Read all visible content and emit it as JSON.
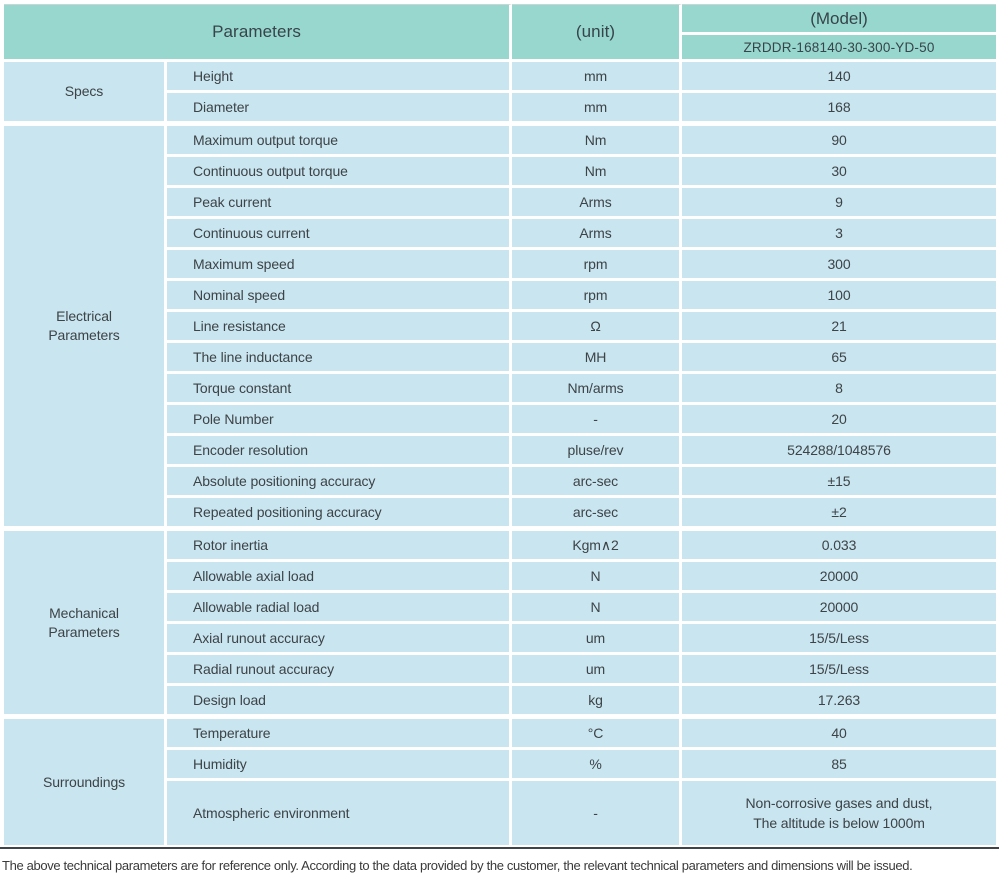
{
  "header": {
    "parameters_label": "Parameters",
    "unit_label": "(unit)",
    "model_label": "(Model)",
    "model_number": "ZRDDR-168140-30-300-YD-50"
  },
  "colors": {
    "header_bg": "#98d7ce",
    "row_bg": "#c9e5ef",
    "grid": "#ffffff",
    "text": "#3d4347",
    "bottom_rule": "#3f4448"
  },
  "groups": [
    {
      "label": "Specs",
      "rows": [
        {
          "param": "Height",
          "unit": "mm",
          "value": "140"
        },
        {
          "param": "Diameter",
          "unit": "mm",
          "value": "168"
        }
      ]
    },
    {
      "label": "Electrical Parameters",
      "rows": [
        {
          "param": "Maximum output torque",
          "unit": "Nm",
          "value": "90"
        },
        {
          "param": "Continuous output torque",
          "unit": "Nm",
          "value": "30"
        },
        {
          "param": "Peak current",
          "unit": "Arms",
          "value": "9"
        },
        {
          "param": "Continuous current",
          "unit": "Arms",
          "value": "3"
        },
        {
          "param": "Maximum speed",
          "unit": "rpm",
          "value": "300"
        },
        {
          "param": "Nominal speed",
          "unit": "rpm",
          "value": "100"
        },
        {
          "param": "Line resistance",
          "unit": "Ω",
          "value": "21"
        },
        {
          "param": "The line inductance",
          "unit": "MH",
          "value": "65"
        },
        {
          "param": "Torque constant",
          "unit": "Nm/arms",
          "value": "8"
        },
        {
          "param": "Pole Number",
          "unit": "-",
          "value": "20"
        },
        {
          "param": "Encoder resolution",
          "unit": "pluse/rev",
          "value": "524288/1048576"
        },
        {
          "param": "Absolute positioning accuracy",
          "unit": "arc-sec",
          "value": "±15"
        },
        {
          "param": "Repeated positioning accuracy",
          "unit": "arc-sec",
          "value": "±2"
        }
      ]
    },
    {
      "label": "Mechanical Parameters",
      "rows": [
        {
          "param": "Rotor inertia",
          "unit": "Kgm∧2",
          "value": "0.033"
        },
        {
          "param": "Allowable axial load",
          "unit": "N",
          "value": "20000"
        },
        {
          "param": "Allowable radial load",
          "unit": "N",
          "value": "20000"
        },
        {
          "param": "Axial runout accuracy",
          "unit": "um",
          "value": "15/5/Less"
        },
        {
          "param": "Radial runout accuracy",
          "unit": "um",
          "value": "15/5/Less"
        },
        {
          "param": "Design load",
          "unit": "kg",
          "value": "17.263"
        }
      ]
    },
    {
      "label": "Surroundings",
      "rows": [
        {
          "param": "Temperature",
          "unit": "°C",
          "value": "40"
        },
        {
          "param": "Humidity",
          "unit": "%",
          "value": "85"
        },
        {
          "param": "Atmospheric environment",
          "unit": "-",
          "value": "Non-corrosive gases and dust,\nThe altitude is below 1000m",
          "tall": true
        }
      ]
    }
  ],
  "footer": {
    "note": "The above technical parameters are for reference only. According to the data provided by the customer, the relevant technical parameters and dimensions will be issued."
  }
}
